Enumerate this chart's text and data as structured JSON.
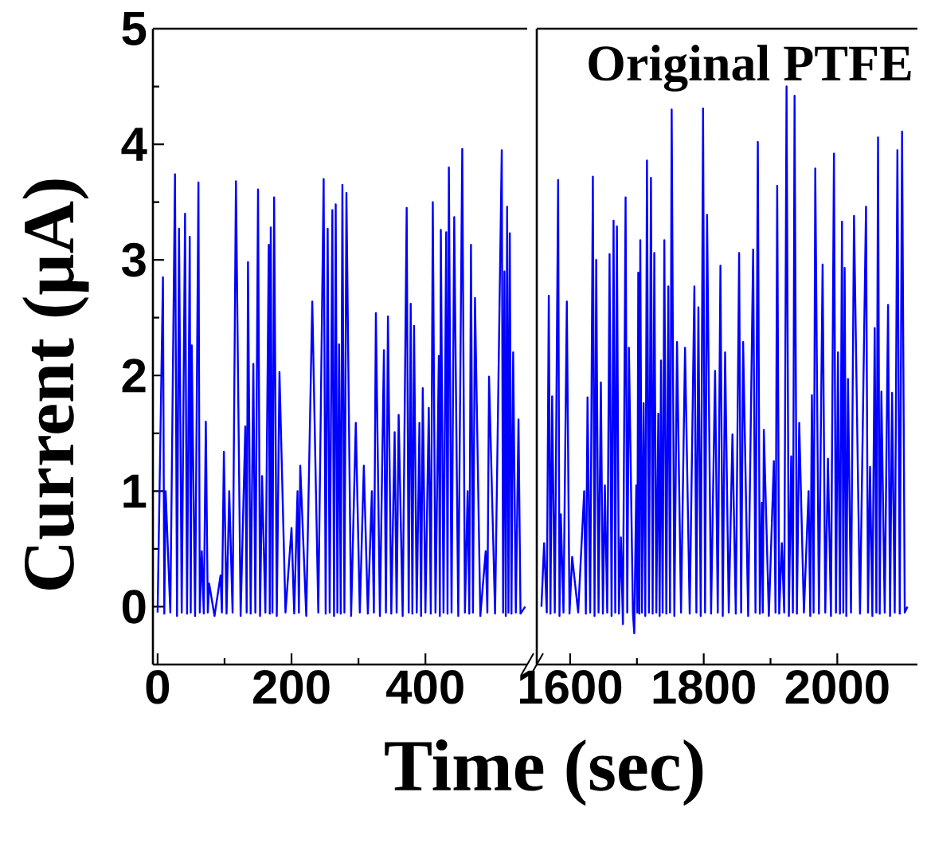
{
  "chart_data": [
    {
      "type": "line",
      "xlabel": "Time (sec)",
      "ylabel": "Current (μA)",
      "color": "#0000ff",
      "xlim": [
        -7,
        552
      ],
      "ylim": [
        -0.5,
        5
      ],
      "xticks": [
        0,
        200,
        400
      ],
      "yticks": [
        0,
        1,
        2,
        3,
        4,
        5
      ],
      "tick_labels": "xy",
      "x": [
        0,
        8,
        10,
        12,
        19,
        26,
        29,
        32,
        36,
        41,
        44,
        48,
        49.5,
        51,
        56,
        61,
        63,
        66,
        69,
        72,
        75,
        77,
        85,
        94,
        96,
        99,
        103,
        107,
        112,
        117,
        124,
        131,
        133,
        135,
        139,
        143,
        146,
        150,
        153,
        156,
        161,
        166,
        167.5,
        169,
        171.5,
        174,
        178,
        182,
        191,
        200,
        204,
        209,
        211,
        213,
        222,
        231,
        240,
        248,
        251,
        254,
        257,
        261,
        263.5,
        266,
        268.5,
        271,
        273.5,
        276,
        279,
        282,
        289,
        296,
        302,
        308,
        314,
        320,
        323,
        326,
        332,
        338,
        341,
        344,
        349,
        354,
        357,
        360,
        366,
        372,
        375,
        378,
        380.5,
        383,
        387,
        391,
        393.5,
        396,
        400,
        405,
        408,
        411,
        415,
        420,
        421.5,
        423,
        427,
        431,
        433,
        435,
        439,
        443,
        449,
        455,
        459,
        463,
        465.5,
        468,
        471,
        474,
        482,
        490,
        492.5,
        495,
        504,
        514,
        516,
        518,
        520,
        522,
        524,
        526,
        528.5,
        531,
        535,
        539,
        542,
        549
      ],
      "values": [
        -0.05,
        2.85,
        -0.06,
        1.0,
        -0.05,
        3.74,
        -0.08,
        3.27,
        -0.05,
        3.4,
        -0.06,
        3.2,
        -0.05,
        2.26,
        -0.08,
        3.67,
        -0.05,
        0.48,
        -0.06,
        1.6,
        -0.05,
        0.2,
        -0.08,
        0.27,
        -0.05,
        1.34,
        -0.06,
        1.0,
        -0.05,
        3.68,
        -0.08,
        1.56,
        -0.05,
        2.98,
        -0.06,
        2.1,
        -0.05,
        3.61,
        -0.08,
        1.13,
        -0.05,
        3.13,
        -0.06,
        3.28,
        -0.05,
        3.54,
        -0.08,
        2.03,
        -0.05,
        0.68,
        -0.06,
        1.0,
        -0.05,
        1.22,
        -0.08,
        2.64,
        -0.05,
        3.7,
        -0.06,
        3.27,
        -0.05,
        3.43,
        -0.08,
        3.48,
        -0.05,
        2.27,
        -0.06,
        3.65,
        -0.05,
        3.58,
        -0.08,
        1.59,
        -0.05,
        1.22,
        -0.06,
        1.0,
        -0.05,
        2.54,
        -0.08,
        2.22,
        -0.05,
        2.51,
        -0.06,
        1.51,
        -0.05,
        1.66,
        -0.08,
        3.45,
        -0.05,
        2.62,
        -0.06,
        2.43,
        -0.05,
        1.59,
        -0.08,
        1.89,
        -0.05,
        1.72,
        -0.06,
        3.5,
        -0.05,
        2.17,
        -0.08,
        3.26,
        -0.05,
        3.24,
        -0.06,
        3.8,
        -0.05,
        3.37,
        -0.08,
        3.96,
        -0.05,
        1.0,
        -0.06,
        3.13,
        -0.05,
        2.67,
        -0.08,
        0.48,
        -0.05,
        1.99,
        -0.06,
        3.95,
        -0.05,
        2.9,
        -0.08,
        3.46,
        -0.05,
        3.23,
        -0.06,
        2.2,
        -0.05,
        1.62,
        -0.06,
        0
      ]
    },
    {
      "type": "line",
      "annotations": [
        "Original PTFE"
      ],
      "color": "#0000ff",
      "xlim": [
        1550,
        2120
      ],
      "ylim": [
        -0.5,
        5
      ],
      "xticks": [
        1600,
        1800,
        2000
      ],
      "tick_labels": "x",
      "x": [
        1557,
        1561,
        1565,
        1568,
        1570.5,
        1573,
        1577,
        1582,
        1584,
        1586,
        1590,
        1595,
        1599,
        1603,
        1612,
        1621,
        1623.5,
        1626,
        1630,
        1634,
        1636.5,
        1639,
        1642.5,
        1646,
        1649,
        1652,
        1655.5,
        1659,
        1662,
        1665,
        1667.5,
        1670,
        1673,
        1676,
        1679,
        1683,
        1685.5,
        1688,
        1694,
        1696,
        1699,
        1700.5,
        1702,
        1703.5,
        1705,
        1707.5,
        1710,
        1712.5,
        1715,
        1718,
        1721,
        1723.5,
        1726,
        1729,
        1732,
        1734,
        1736,
        1738.5,
        1741,
        1744,
        1747,
        1749.5,
        1752,
        1756,
        1760,
        1766,
        1772,
        1779,
        1786,
        1789,
        1792,
        1795.5,
        1799,
        1802,
        1805,
        1811,
        1817,
        1821,
        1825,
        1828.5,
        1832,
        1837.5,
        1843,
        1848,
        1853,
        1856,
        1859,
        1866.5,
        1874,
        1877.5,
        1881,
        1884,
        1887,
        1888.5,
        1890,
        1897.5,
        1905,
        1907.5,
        1910,
        1913,
        1917,
        1920.5,
        1924,
        1927.5,
        1931,
        1933.5,
        1936,
        1939.5,
        1943,
        1950,
        1957,
        1959.5,
        1962,
        1964.5,
        1967,
        1972.5,
        1978,
        1982,
        1986,
        1990.5,
        1995,
        1998,
        2001,
        2004,
        2007,
        2009,
        2011,
        2013.5,
        2016,
        2020.5,
        2025,
        2034,
        2043,
        2046,
        2049,
        2052.5,
        2056,
        2058.5,
        2061,
        2063.5,
        2066,
        2071,
        2076,
        2079,
        2082,
        2086,
        2090,
        2093.5,
        2097,
        2101,
        2105
      ],
      "values": [
        0,
        0.55,
        -0.05,
        2.69,
        -0.06,
        1.82,
        -0.05,
        3.69,
        -0.08,
        0.8,
        -0.05,
        2.64,
        -0.06,
        0.43,
        -0.05,
        1.0,
        -0.06,
        1.81,
        -0.05,
        3.72,
        -0.08,
        3.0,
        -0.05,
        1.94,
        -0.06,
        1.05,
        -0.05,
        3.05,
        -0.08,
        3.34,
        -0.05,
        3.29,
        -0.06,
        0.6,
        -0.15,
        3.54,
        -0.05,
        2.24,
        -0.06,
        -0.23,
        1.05,
        -0.05,
        2.89,
        -0.06,
        3.17,
        -0.05,
        1.76,
        -0.08,
        3.86,
        -0.05,
        3.71,
        -0.06,
        3.06,
        -0.05,
        1.67,
        -0.08,
        2.13,
        -0.05,
        3.17,
        -0.06,
        2.77,
        -0.05,
        4.3,
        -0.08,
        2.29,
        -0.05,
        2.24,
        -0.06,
        2.77,
        -0.05,
        2.59,
        -0.08,
        4.31,
        -0.05,
        3.39,
        -0.06,
        2.04,
        -0.05,
        2.95,
        -0.08,
        2.2,
        -0.05,
        1.49,
        -0.06,
        3.06,
        -0.05,
        2.29,
        -0.08,
        3.09,
        -0.05,
        4.02,
        -0.06,
        0.9,
        -0.05,
        1.53,
        -0.08,
        1.26,
        -0.05,
        3.64,
        -0.06,
        0.55,
        -0.05,
        4.5,
        -0.08,
        1.3,
        -0.05,
        4.42,
        -0.06,
        1.59,
        -0.05,
        1.0,
        -0.08,
        1.83,
        -0.05,
        3.79,
        -0.06,
        2.96,
        -0.05,
        1.28,
        -0.08,
        3.92,
        -0.05,
        2.2,
        -0.06,
        3.33,
        -0.05,
        2.93,
        -0.08,
        1.97,
        -0.05,
        3.38,
        -0.06,
        3.46,
        -0.05,
        1.21,
        -0.08,
        2.41,
        -0.05,
        4.06,
        -0.06,
        1.86,
        -0.05,
        2.61,
        -0.08,
        1.85,
        -0.05,
        3.95,
        -0.06,
        4.11,
        -0.05,
        0
      ]
    }
  ]
}
